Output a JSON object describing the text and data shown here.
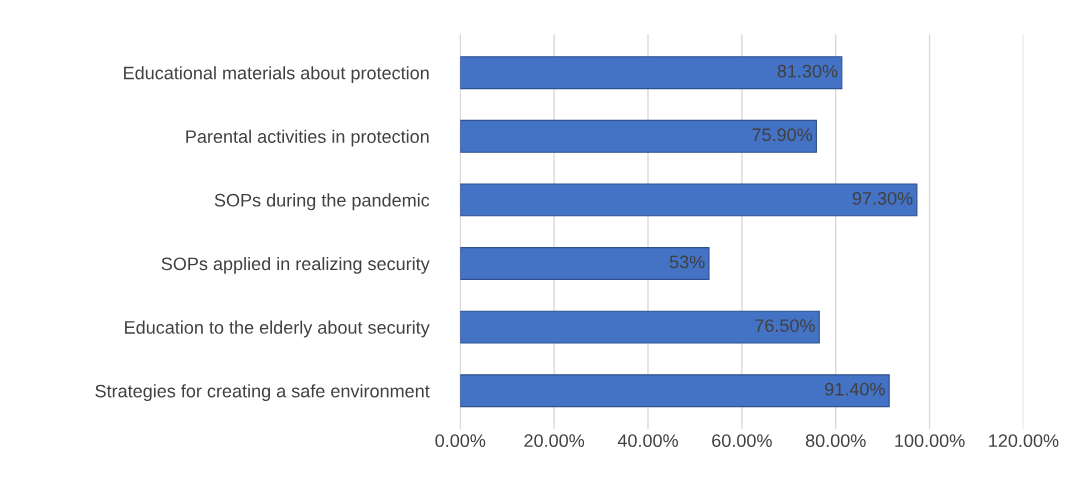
{
  "chart_data": {
    "type": "bar",
    "orientation": "horizontal",
    "categories": [
      "Educational materials about protection",
      "Parental activities in protection",
      "SOPs during the pandemic",
      "SOPs applied in realizing security",
      "Education to the elderly about security",
      "Strategies for creating a safe environment"
    ],
    "values": [
      81.3,
      75.9,
      97.3,
      53,
      76.5,
      91.4
    ],
    "value_labels": [
      "81.30%",
      "75.90%",
      "97.30%",
      "53%",
      "76.50%",
      "91.40%"
    ],
    "color": "#4472c4",
    "xlim": [
      0,
      120
    ],
    "xticks": [
      {
        "value": 0,
        "label": "0.00%"
      },
      {
        "value": 20,
        "label": "20.00%"
      },
      {
        "value": 40,
        "label": "40.00%"
      },
      {
        "value": 60,
        "label": "60.00%"
      },
      {
        "value": 80,
        "label": "80.00%"
      },
      {
        "value": 100,
        "label": "100.00%"
      },
      {
        "value": 120,
        "label": "120.00%"
      }
    ],
    "grid": "x",
    "legend": false
  }
}
